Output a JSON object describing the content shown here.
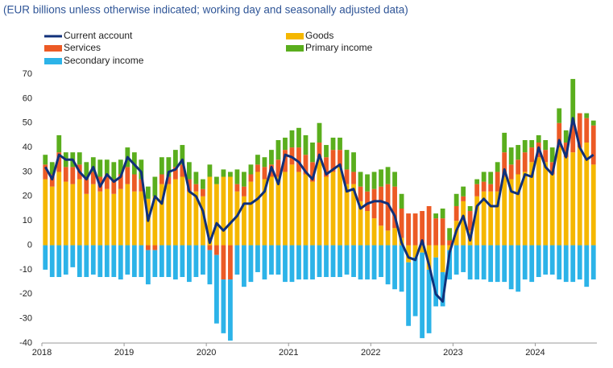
{
  "chart_data": {
    "type": "bar",
    "subtitle": "(EUR billions unless otherwise indicated; working day and seasonally adjusted data)",
    "categories": [
      "2018",
      null,
      null,
      null,
      null,
      null,
      null,
      null,
      null,
      null,
      null,
      null,
      "2019",
      null,
      null,
      null,
      null,
      null,
      null,
      null,
      null,
      null,
      null,
      null,
      "2020",
      null,
      null,
      null,
      null,
      null,
      null,
      null,
      null,
      null,
      null,
      null,
      "2021",
      null,
      null,
      null,
      null,
      null,
      null,
      null,
      null,
      null,
      null,
      null,
      "2022",
      null,
      null,
      null,
      null,
      null,
      null,
      null,
      null,
      null,
      null,
      null,
      "2023",
      null,
      null,
      null,
      null,
      null,
      null,
      null,
      null,
      null,
      null,
      null,
      "2024",
      null,
      null,
      null,
      null,
      null,
      null,
      null,
      null
    ],
    "series": [
      {
        "name": "Current account",
        "type": "line",
        "color": "#10307a",
        "values": [
          32,
          27,
          37,
          35,
          35,
          30,
          27,
          32,
          24,
          29,
          26,
          28,
          36,
          33,
          30,
          10,
          20,
          17,
          30,
          31,
          35,
          22,
          20,
          14,
          1,
          9,
          6,
          9,
          12,
          17,
          17,
          19,
          22,
          32,
          25,
          37,
          36,
          34,
          30,
          27,
          37,
          29,
          31,
          33,
          22,
          23,
          15,
          17,
          18,
          18,
          17,
          12,
          1,
          -5,
          -6,
          2,
          -8,
          -20,
          -23,
          -3,
          6,
          12,
          2,
          16,
          19,
          16,
          16,
          31,
          22,
          21,
          29,
          28,
          40,
          32,
          29,
          43,
          36,
          52,
          40,
          35,
          37
        ]
      },
      {
        "name": "Goods",
        "type": "bar",
        "color": "#f5b700",
        "values": [
          27,
          24,
          30,
          26,
          25,
          27,
          21,
          25,
          22,
          23,
          21,
          23,
          25,
          22,
          22,
          19,
          20,
          25,
          25,
          27,
          28,
          22,
          22,
          20,
          28,
          25,
          28,
          28,
          22,
          20,
          26,
          30,
          27,
          28,
          28,
          30,
          33,
          30,
          29,
          26,
          36,
          28,
          30,
          32,
          25,
          25,
          18,
          14,
          11,
          8,
          6,
          7,
          3,
          -7,
          -5,
          -3,
          -10,
          -5,
          -11,
          -2,
          10,
          18,
          6,
          20,
          22,
          22,
          22,
          28,
          27,
          29,
          30,
          34,
          36,
          34,
          29,
          40,
          36,
          38,
          40,
          42,
          33
        ]
      },
      {
        "name": "Services",
        "type": "bar",
        "color": "#ec5a25",
        "values": [
          6,
          5,
          8,
          6,
          7,
          6,
          6,
          5,
          6,
          6,
          6,
          6,
          7,
          7,
          5,
          -2,
          -2,
          4,
          3,
          5,
          5,
          5,
          3,
          3,
          -2,
          -4,
          -14,
          -14,
          3,
          4,
          3,
          3,
          5,
          5,
          7,
          9,
          7,
          10,
          8,
          8,
          6,
          8,
          9,
          7,
          6,
          5,
          6,
          8,
          12,
          16,
          19,
          17,
          12,
          13,
          13,
          14,
          16,
          11,
          11,
          2,
          6,
          2,
          8,
          5,
          4,
          3,
          8,
          10,
          6,
          6,
          8,
          6,
          6,
          5,
          5,
          10,
          6,
          12,
          14,
          10,
          16
        ]
      },
      {
        "name": "Primary income",
        "type": "bar",
        "color": "#5aae1d",
        "values": [
          4,
          5,
          7,
          6,
          6,
          5,
          7,
          6,
          7,
          6,
          7,
          6,
          8,
          9,
          8,
          5,
          8,
          7,
          8,
          7,
          8,
          7,
          5,
          4,
          5,
          3,
          3,
          2,
          6,
          6,
          4,
          4,
          4,
          6,
          8,
          5,
          7,
          8,
          8,
          8,
          8,
          5,
          5,
          5,
          8,
          8,
          6,
          7,
          7,
          7,
          7,
          6,
          6,
          0,
          0,
          0,
          0,
          2,
          4,
          5,
          5,
          4,
          2,
          2,
          4,
          5,
          4,
          8,
          7,
          6,
          5,
          3,
          3,
          4,
          6,
          6,
          5,
          18,
          0,
          2,
          2
        ]
      },
      {
        "name": "Secondary income",
        "type": "bar",
        "color": "#2cb3e8",
        "values": [
          -10,
          -13,
          -13,
          -12,
          -9,
          -13,
          -13,
          -12,
          -13,
          -13,
          -13,
          -14,
          -12,
          -13,
          -13,
          -14,
          -11,
          -13,
          -13,
          -14,
          -13,
          -15,
          -13,
          -12,
          -14,
          -28,
          -22,
          -25,
          -12,
          -17,
          -15,
          -11,
          -14,
          -12,
          -12,
          -15,
          -15,
          -14,
          -14,
          -14,
          -13,
          -13,
          -13,
          -13,
          -12,
          -13,
          -14,
          -14,
          -14,
          -13,
          -16,
          -18,
          -19,
          -26,
          -24,
          -35,
          -26,
          -20,
          -14,
          -12,
          -12,
          -11,
          -14,
          -14,
          -14,
          -15,
          -15,
          -15,
          -18,
          -19,
          -14,
          -15,
          -13,
          -12,
          -12,
          -14,
          -15,
          -15,
          -14,
          -17,
          -14
        ]
      }
    ],
    "ylim": [
      -40,
      70
    ],
    "yticks": [
      -40,
      -30,
      -20,
      -10,
      0,
      10,
      20,
      30,
      40,
      50,
      60,
      70
    ],
    "grid": false
  }
}
